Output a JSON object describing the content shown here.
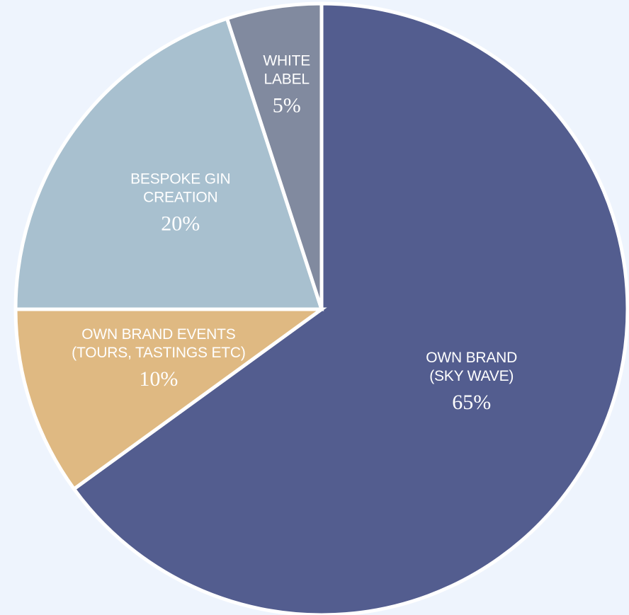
{
  "chart_data": {
    "type": "pie",
    "unit": "%",
    "slices": [
      {
        "label_lines": [
          "OWN BRAND",
          "(SKY WAVE)"
        ],
        "value": 65,
        "value_label": "65%",
        "color": "#535d8f"
      },
      {
        "label_lines": [
          "OWN BRAND EVENTS",
          "(TOURS, TASTINGS ETC)"
        ],
        "value": 10,
        "value_label": "10%",
        "color": "#dfb982"
      },
      {
        "label_lines": [
          "BESPOKE GIN",
          "CREATION"
        ],
        "value": 20,
        "value_label": "20%",
        "color": "#a8c0cf"
      },
      {
        "label_lines": [
          "WHITE",
          "LABEL"
        ],
        "value": 5,
        "value_label": "5%",
        "color": "#818a9f"
      }
    ],
    "start_angle_deg": 0,
    "direction": "clockwise",
    "legend": "none",
    "data_labels": "inside"
  },
  "colors": {
    "background": "#eef4fd",
    "slice_border": "#ffffff",
    "label_text": "#ffffff"
  }
}
